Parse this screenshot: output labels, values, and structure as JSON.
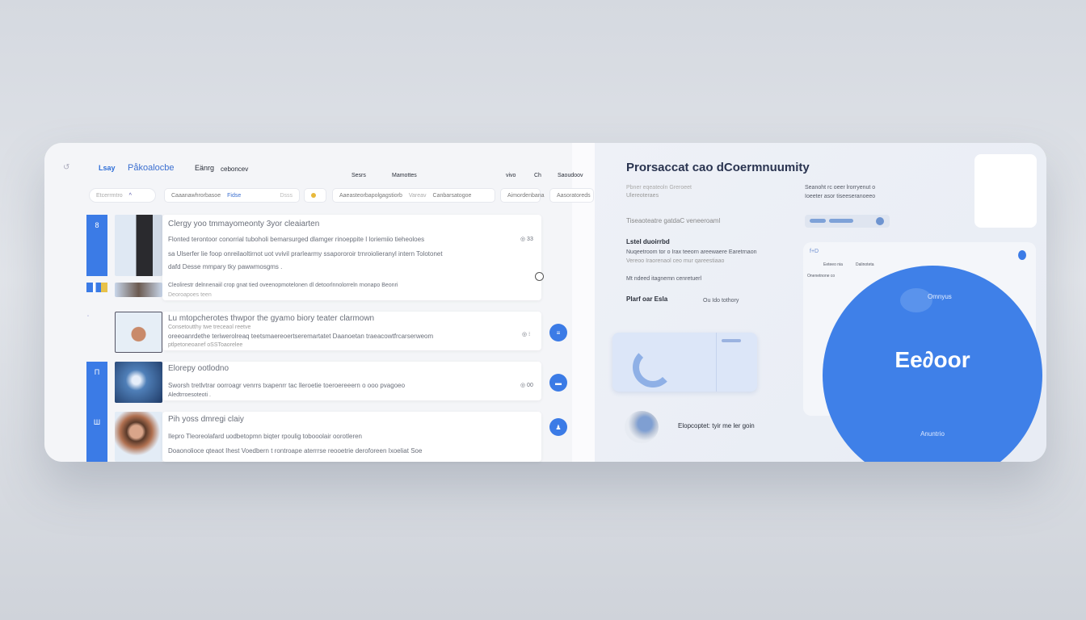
{
  "header": {
    "logo_mark": "Lsay",
    "app_name": "Påkoalocbe",
    "menu": [
      "Eänrg",
      "ceboncev"
    ],
    "nav": [
      "Sesrs",
      "Mamottes",
      "vivo",
      "Ch",
      "Saoudoov"
    ]
  },
  "filters": {
    "pill": "Etcerrmtro",
    "field1": "Caaanawhrorbasoe",
    "field1_tag": "Fidse",
    "field1_end": "Dsss",
    "field2": "Aaeasteorbapolgagstiorb",
    "field2_mid": "Vareav",
    "field2_end": "Canbarsatogoe",
    "field3": "Aimordenbana",
    "field4": "Aasoratoreds"
  },
  "list": [
    {
      "tab": "8",
      "title": "Clergy yoo tmmayomeonty 3yor cleaiarten",
      "lines": [
        "Flonted  terontoor conorrial tuboholi bemarsurged dlamger rinoeppite I loriemiio tieheoloes",
        "sa Ulserfer lie foop onreilaoltirnot uot vvivil prarlearmy ssapororoir trnroiolieranyl intern Tolotonet",
        "dafd Desse mmpary tky pawwmosgms ."
      ],
      "meta": "◎ 33",
      "extra": [
        "Cleolirestr delnnenaiil crop  gnat tied oveenopmotelonen dl detoorlnnolorreln rnonapo Beonri",
        "Deoroapoes teen"
      ]
    },
    {
      "tab": "",
      "title": "Lu mtopcherotes  thwpor the gyamo biory teater clarmown",
      "lines": [
        "Consetoutthy  twe treceaol reetve",
        "oreeoanrdethe teriwerolreaq teetsmaereoertseremartatet Daanoetan traeacowtfrcarserweom",
        "ptlpetoneoanef oSSToaorelee"
      ],
      "meta": "◎ ⁝",
      "fab": "≡"
    },
    {
      "tab": "Π",
      "title": "Elorepy  ootlodno",
      "lines": [
        "Sworsh tretlvtrar oorroagr venrrs txapenrr tac lleroetie toeroereeern o ooo pvagoeo",
        "Aledtrroesoteoti ."
      ],
      "meta": "◎ 00",
      "fab": "▬"
    },
    {
      "tab": "Ш",
      "title": "Pih yoss dmregi claiy",
      "lines": [
        "Ilepro Tleoreolafard uodbetopmn biqter rpoulig tobooolair  oorotleren",
        "Doaonolioce qteaot Ihest Voedbern t rontroape aterrrse reooetrie deroforeen Ixoeliat Soe"
      ],
      "fab": "♟"
    }
  ],
  "right": {
    "title": "Prorsaccat cao dCoermnuumity",
    "col1": [
      "Pbner eqeateoln Greroeet",
      "Ulereoteraes"
    ],
    "col2": [
      "Seanoht rc oeer lrorryenut o",
      "Ioeeter asor tiseeseranoeeo"
    ],
    "line3": "Tiseaoteatre gatdaC veneeroaml",
    "label1": "Lstel duoirrbd",
    "para1": [
      "Nuqeetroom tor o Irax teeorn areewaere Earetrnaon",
      "Vereoo Iraorenaol  ceo mur qareestiaao"
    ],
    "line4": "Mt ndeed itagnemn cenretuerl",
    "label2": "Plarf oar Esla",
    "label2_side": "Ou Ido tothory",
    "panel": {
      "tag": "f+D",
      "col_a": "Eeteeo nia",
      "col_b": "Dalinoteta",
      "row": "Onenetnone co"
    },
    "circle": {
      "brand": "Ee∂oor",
      "top": "Omnyus",
      "bottom": "Anuntrio"
    },
    "footer": "Elopcoptet: tyir me ler goin"
  },
  "colors": {
    "accent": "#3b7be6",
    "title": "#2a3450",
    "background": "#f3f4f7"
  }
}
